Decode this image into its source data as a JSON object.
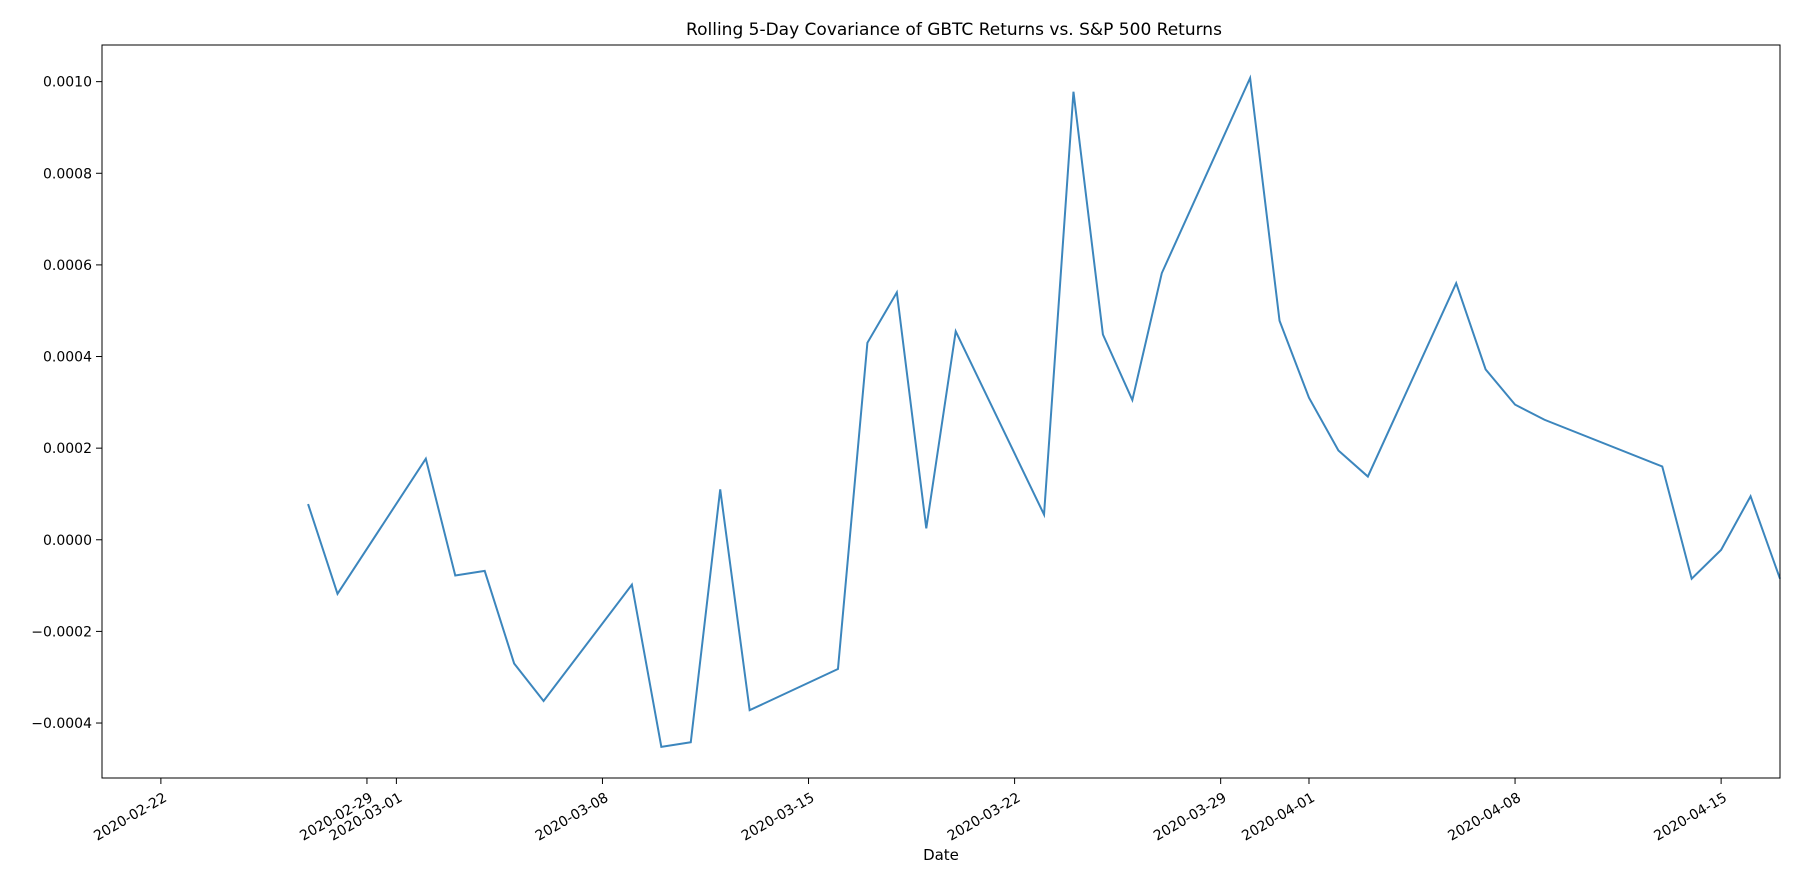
{
  "chart_data": {
    "type": "line",
    "title": "Rolling 5-Day Covariance of GBTC Returns vs. S&P 500 Returns",
    "xlabel": "Date",
    "ylabel": "",
    "grid": false,
    "legend": "none",
    "line_color": "#3c86bd",
    "xlim": [
      "2020-02-20",
      "2020-04-17"
    ],
    "ylim": [
      -0.00052,
      0.00108
    ],
    "x_ticks": [
      "2020-02-22",
      "2020-02-29",
      "2020-03-01",
      "2020-03-08",
      "2020-03-15",
      "2020-03-22",
      "2020-03-29",
      "2020-04-01",
      "2020-04-08",
      "2020-04-15"
    ],
    "y_ticks": [
      -0.0004,
      -0.0002,
      0.0,
      0.0002,
      0.0004,
      0.0006,
      0.0008,
      0.001
    ],
    "y_tick_labels": [
      "−0.0004",
      "−0.0002",
      "0.0000",
      "0.0002",
      "0.0004",
      "0.0006",
      "0.0008",
      "0.0010"
    ],
    "series": [
      {
        "x": [
          "2020-02-27",
          "2020-02-28",
          "2020-03-02",
          "2020-03-03",
          "2020-03-04",
          "2020-03-05",
          "2020-03-06",
          "2020-03-09",
          "2020-03-10",
          "2020-03-11",
          "2020-03-12",
          "2020-03-13",
          "2020-03-16",
          "2020-03-17",
          "2020-03-18",
          "2020-03-19",
          "2020-03-20",
          "2020-03-23",
          "2020-03-24",
          "2020-03-25",
          "2020-03-26",
          "2020-03-27",
          "2020-03-30",
          "2020-03-31",
          "2020-04-01",
          "2020-04-02",
          "2020-04-03",
          "2020-04-06",
          "2020-04-07",
          "2020-04-08",
          "2020-04-09",
          "2020-04-13",
          "2020-04-14",
          "2020-04-15",
          "2020-04-16",
          "2020-04-17"
        ],
        "values": [
          7.8e-05,
          -0.000118,
          0.000177,
          -7.8e-05,
          -6.8e-05,
          -0.00027,
          -0.000352,
          -9.8e-05,
          -0.000452,
          -0.000442,
          0.00011,
          -0.000372,
          -0.000282,
          0.00043,
          0.00054,
          2.5e-05,
          0.000455,
          5.5e-05,
          0.000978,
          0.000448,
          0.000305,
          0.000582,
          0.001008,
          0.000478,
          0.00031,
          0.000195,
          0.000138,
          0.00056,
          0.000372,
          0.000295,
          0.000262,
          0.00016,
          -8.5e-05,
          -2.2e-05,
          9.5e-05,
          -8.5e-05
        ]
      }
    ]
  }
}
